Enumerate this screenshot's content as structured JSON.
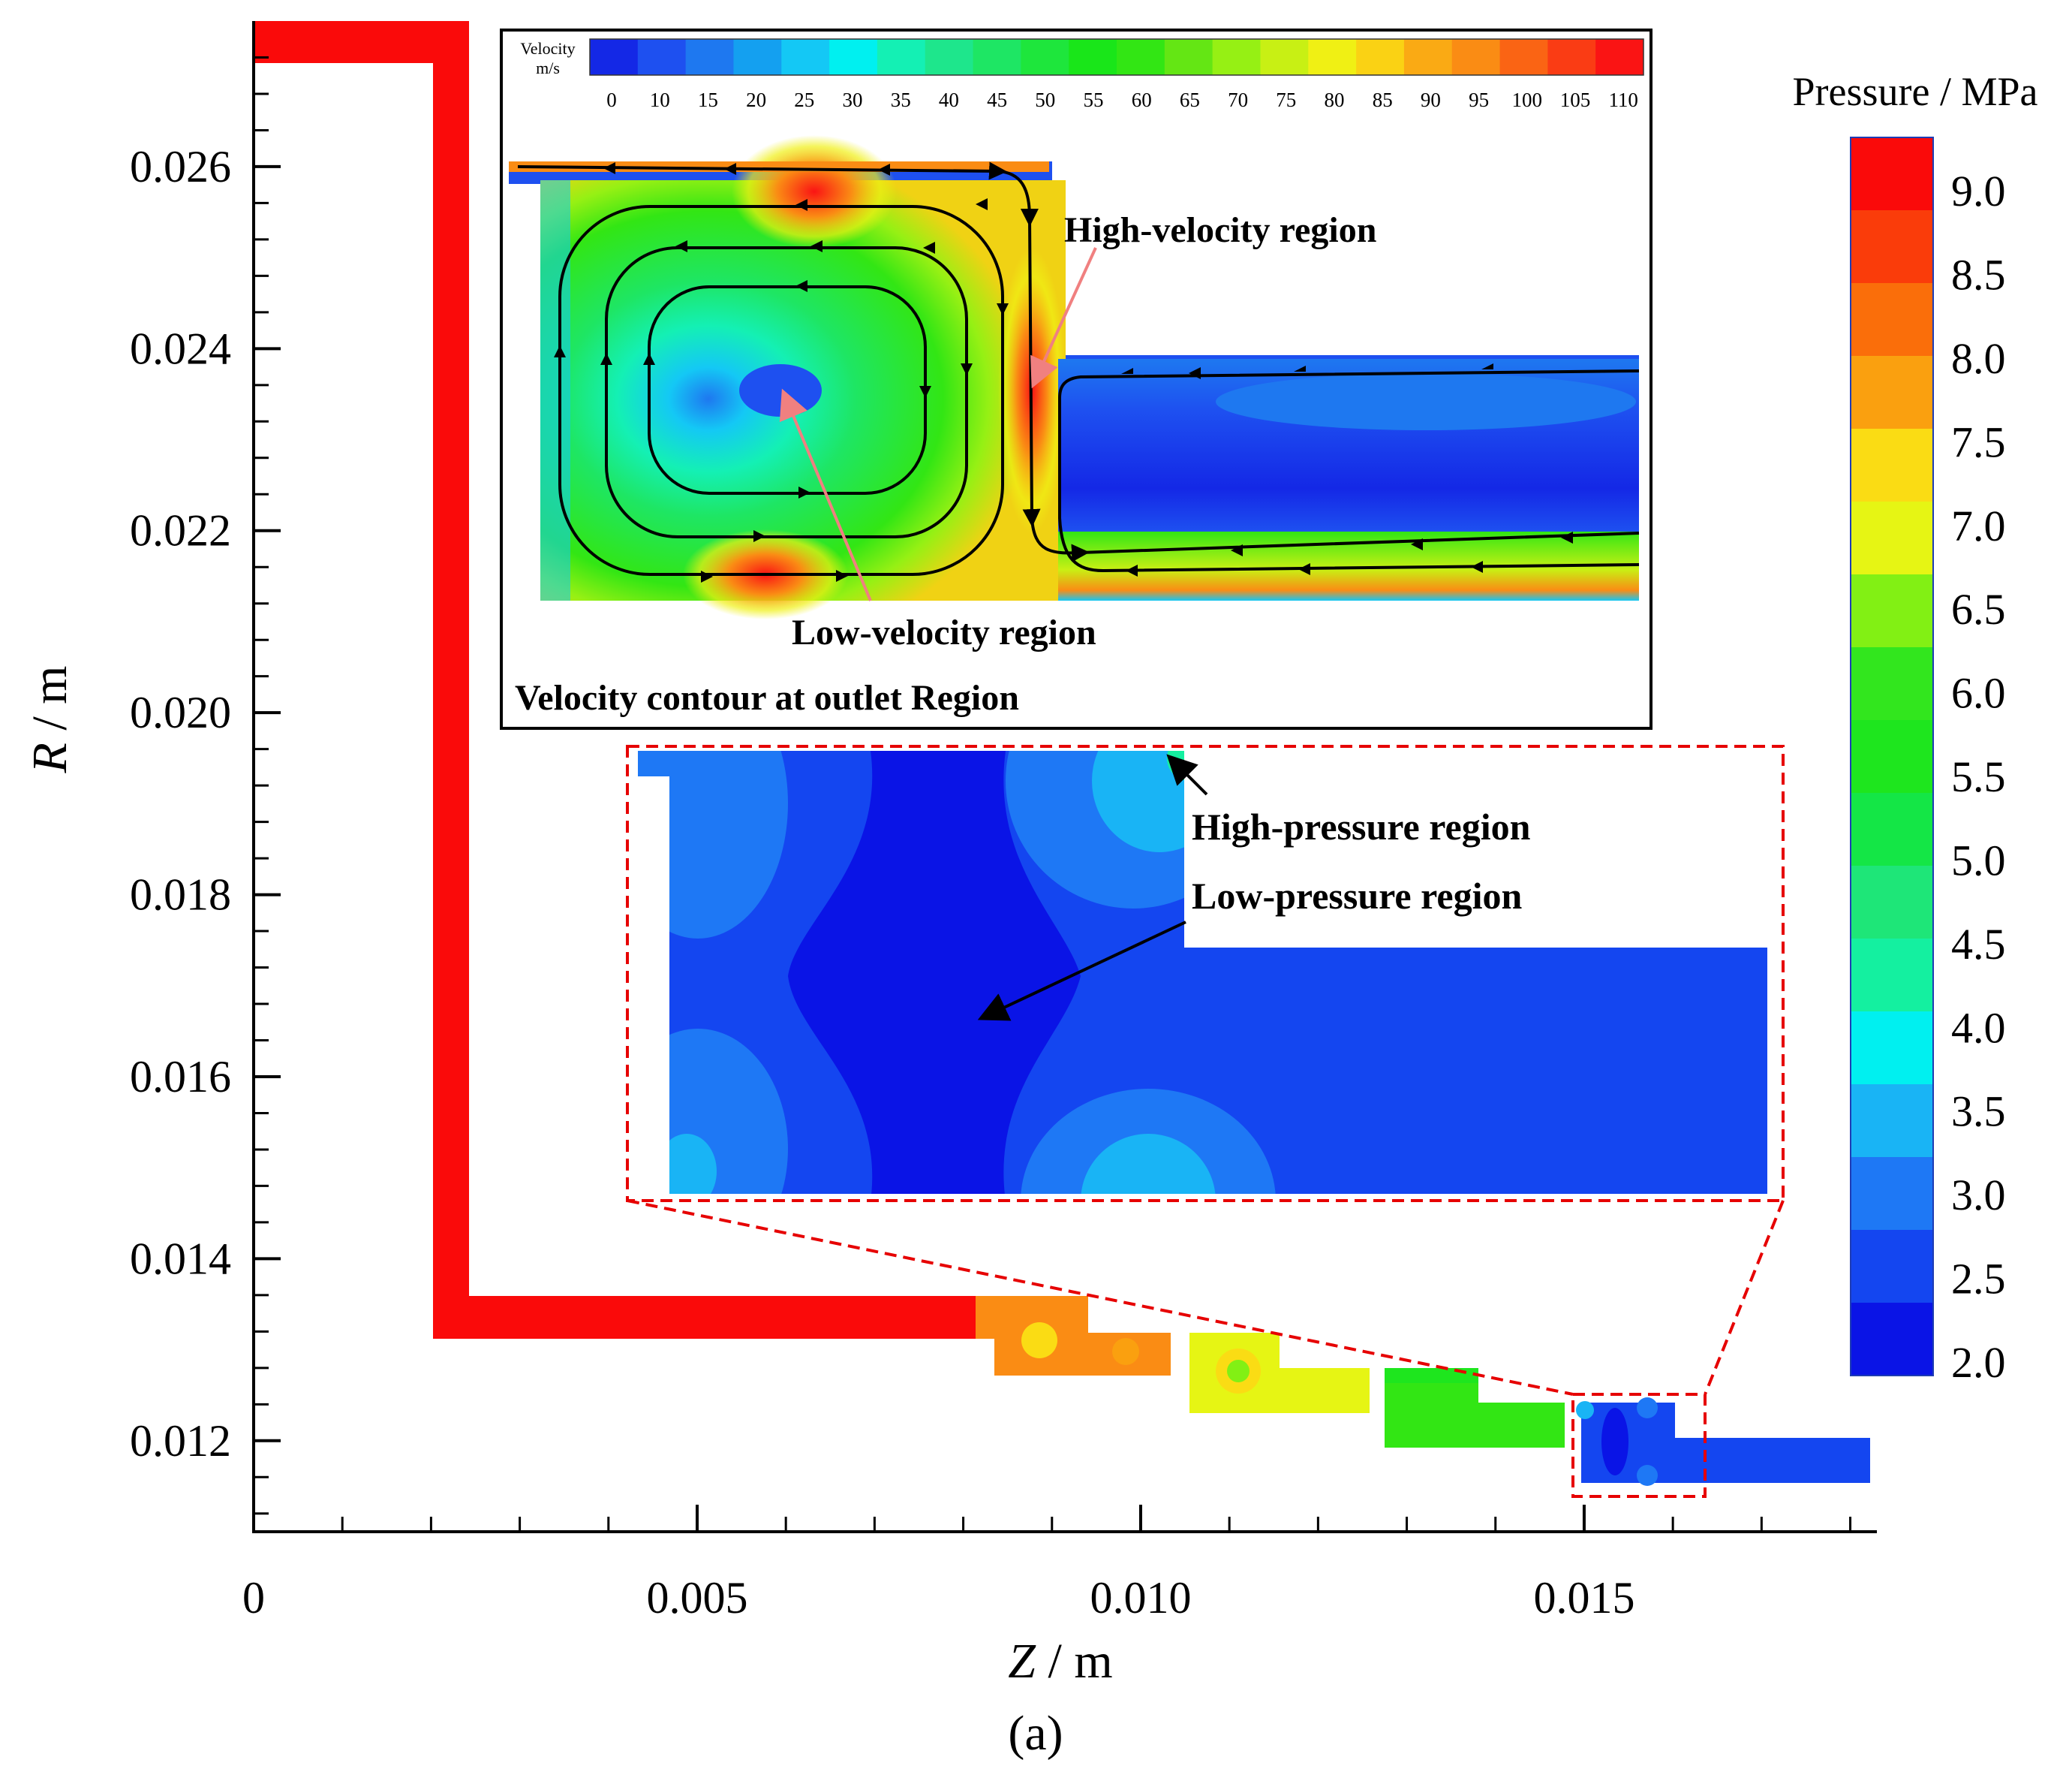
{
  "panel_label": "(a)",
  "colors": {
    "pressure_scale": [
      "#0a14e6",
      "#1446f0",
      "#1e78f5",
      "#19b4f5",
      "#00f0f0",
      "#14f0a0",
      "#1ee678",
      "#14e646",
      "#1ee61e",
      "#32e61e",
      "#82f014",
      "#e6f514",
      "#fadc14",
      "#faa00f",
      "#fa6e0a",
      "#fa3c0a",
      "#fa0a0a"
    ],
    "velocity_scale": [
      "#1428e6",
      "#1e50f0",
      "#1e78f0",
      "#14a0f0",
      "#14c8f5",
      "#00f0f0",
      "#14f0b4",
      "#1ee68c",
      "#1ee664",
      "#1ee63c",
      "#19e619",
      "#32e614",
      "#64e614",
      "#96f014",
      "#c8f014",
      "#f0f014",
      "#fad214",
      "#faaa14",
      "#fa8c14",
      "#fa6414",
      "#fa3c14",
      "#fa1414"
    ],
    "red_body": "#fa0a0a",
    "inset_stage_orange": "#fa8c14",
    "inset_stage_yellow": "#e6f514",
    "inset_stage_green": "#32e614",
    "inset_stage_blue": "#1446f0",
    "zoom_dash": "#e60000",
    "annotation_arrow_pink": "#f08080"
  },
  "chart_data": [
    {
      "type": "heatmap",
      "name": "pressure-contour",
      "xlabel_var": "Z",
      "xlabel_unit": " / m",
      "ylabel_var": "R",
      "ylabel_unit": " / m",
      "xlim": [
        0,
        0.0183
      ],
      "ylim": [
        0.011,
        0.0276
      ],
      "xticks": [
        "0",
        "0.005",
        "0.010",
        "0.015"
      ],
      "xtick_values": [
        0,
        0.005,
        0.01,
        0.015
      ],
      "yticks": [
        "0.012",
        "0.014",
        "0.016",
        "0.018",
        "0.020",
        "0.022",
        "0.024",
        "0.026"
      ],
      "ytick_values": [
        0.012,
        0.014,
        0.016,
        0.018,
        0.02,
        0.022,
        0.024,
        0.026
      ],
      "colorbar": {
        "title": "Pressure / MPa",
        "labels": [
          "9.0",
          "8.5",
          "8.0",
          "7.5",
          "7.0",
          "6.5",
          "6.0",
          "5.5",
          "5.0",
          "4.5",
          "4.0",
          "3.5",
          "3.0",
          "2.5",
          "2.0"
        ],
        "range": [
          2.0,
          9.4
        ]
      },
      "regions": [
        {
          "name": "inlet-channel",
          "pressure_mpa": 9.2
        },
        {
          "name": "stage-1",
          "z_range": [
            0.0081,
            0.0103
          ],
          "r_range": [
            0.0126,
            0.0135
          ],
          "pressure_mpa": 8.5
        },
        {
          "name": "stage-2",
          "z_range": [
            0.0105,
            0.0125
          ],
          "r_range": [
            0.0122,
            0.0131
          ],
          "pressure_mpa": 7.5
        },
        {
          "name": "stage-3",
          "z_range": [
            0.0127,
            0.0147
          ],
          "r_range": [
            0.0118,
            0.0127
          ],
          "pressure_mpa": 6.0
        },
        {
          "name": "stage-4",
          "z_range": [
            0.0149,
            0.0182
          ],
          "r_range": [
            0.0114,
            0.0123
          ],
          "pressure_mpa": 2.5
        }
      ],
      "annotations": [
        "High-pressure region",
        "Low-pressure region"
      ]
    },
    {
      "type": "heatmap",
      "name": "velocity-contour-inset",
      "title": "Velocity contour at outlet Region",
      "colorbar": {
        "title": "Velocity",
        "unit": "m/s",
        "labels": [
          "0",
          "10",
          "15",
          "20",
          "25",
          "30",
          "35",
          "40",
          "45",
          "50",
          "55",
          "60",
          "65",
          "70",
          "75",
          "80",
          "85",
          "90",
          "95",
          "100",
          "105",
          "110"
        ],
        "range": [
          0,
          110
        ]
      },
      "annotations": [
        "High-velocity region",
        "Low-velocity region"
      ]
    }
  ]
}
